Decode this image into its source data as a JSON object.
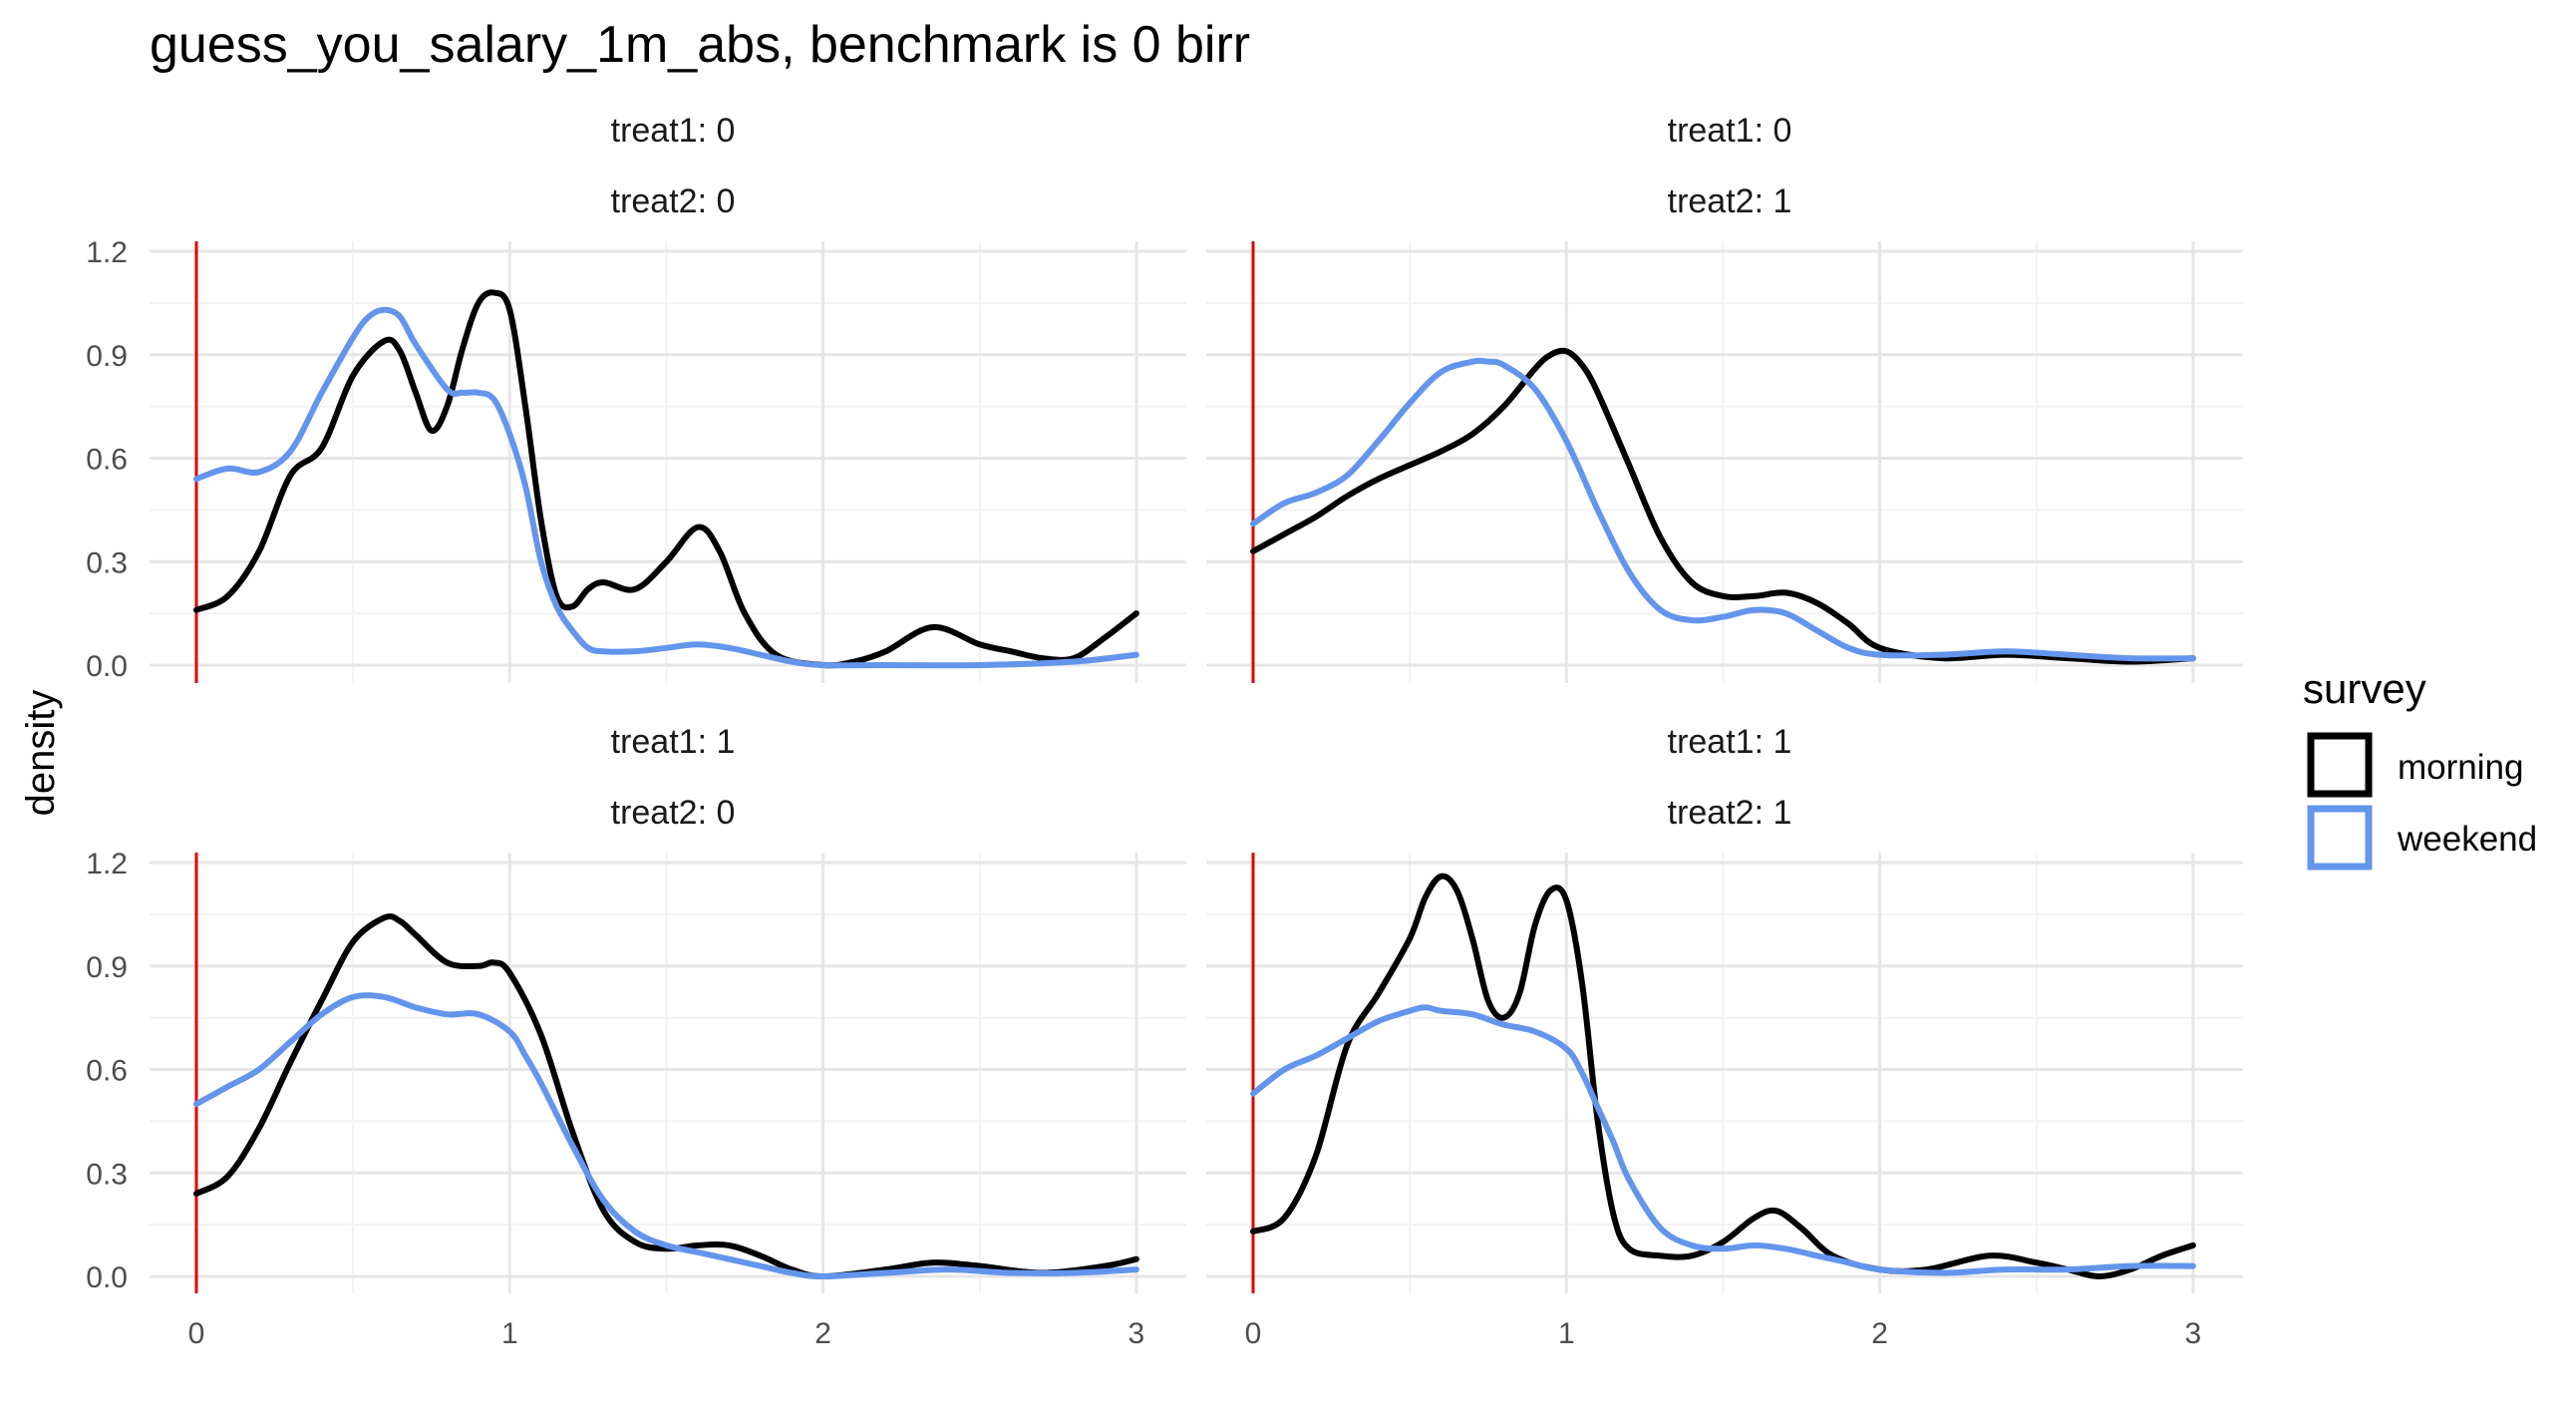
{
  "chart_data": {
    "type": "line",
    "title": "guess_you_salary_1m_abs, benchmark is 0 birr",
    "xlabel": "",
    "ylabel": "density",
    "xlim": [
      0,
      3
    ],
    "ylim": [
      0,
      1.2
    ],
    "x_ticks": [
      0,
      1,
      2,
      3
    ],
    "x_tick_labels": [
      "0",
      "1",
      "2",
      "3"
    ],
    "y_ticks": [
      0,
      0.3,
      0.6,
      0.9,
      1.2
    ],
    "y_tick_labels": [
      "0.0",
      "0.3",
      "0.6",
      "0.9",
      "1.2"
    ],
    "grid": true,
    "reference_line": {
      "x": 0,
      "color": "#e00000"
    },
    "legend": {
      "title": "survey",
      "position": "right",
      "entries": [
        {
          "label": "morning",
          "color": "#000000"
        },
        {
          "label": "weekend",
          "color": "#6495ED"
        }
      ]
    },
    "facets": [
      {
        "strip": [
          "treat1: 0",
          "treat2: 0"
        ],
        "series": [
          {
            "name": "morning",
            "color": "#000000",
            "x": [
              0,
              0.1,
              0.2,
              0.3,
              0.4,
              0.5,
              0.6,
              0.65,
              0.7,
              0.75,
              0.8,
              0.85,
              0.9,
              0.95,
              1.0,
              1.05,
              1.1,
              1.15,
              1.2,
              1.25,
              1.3,
              1.4,
              1.5,
              1.6,
              1.67,
              1.75,
              1.85,
              2.0,
              2.1,
              2.2,
              2.35,
              2.5,
              2.6,
              2.7,
              2.8,
              2.9,
              3.0
            ],
            "y": [
              0.16,
              0.2,
              0.33,
              0.55,
              0.63,
              0.84,
              0.94,
              0.91,
              0.79,
              0.68,
              0.75,
              0.92,
              1.05,
              1.08,
              1.03,
              0.75,
              0.42,
              0.2,
              0.17,
              0.22,
              0.24,
              0.22,
              0.3,
              0.4,
              0.33,
              0.15,
              0.03,
              0.0,
              0.01,
              0.04,
              0.11,
              0.06,
              0.04,
              0.02,
              0.02,
              0.08,
              0.15
            ]
          },
          {
            "name": "weekend",
            "color": "#6495ED",
            "x": [
              0,
              0.1,
              0.2,
              0.3,
              0.4,
              0.5,
              0.55,
              0.6,
              0.65,
              0.7,
              0.8,
              0.85,
              0.9,
              0.95,
              1.0,
              1.05,
              1.1,
              1.15,
              1.2,
              1.25,
              1.3,
              1.4,
              1.5,
              1.6,
              1.7,
              1.8,
              1.9,
              2.0,
              2.2,
              2.5,
              2.8,
              3.0
            ],
            "y": [
              0.54,
              0.57,
              0.56,
              0.62,
              0.79,
              0.95,
              1.01,
              1.03,
              1.01,
              0.93,
              0.8,
              0.79,
              0.79,
              0.77,
              0.67,
              0.52,
              0.3,
              0.17,
              0.1,
              0.05,
              0.04,
              0.04,
              0.05,
              0.06,
              0.05,
              0.03,
              0.01,
              0.0,
              0.0,
              0.0,
              0.01,
              0.03
            ]
          }
        ]
      },
      {
        "strip": [
          "treat1: 0",
          "treat2: 1"
        ],
        "series": [
          {
            "name": "morning",
            "color": "#000000",
            "x": [
              0,
              0.1,
              0.2,
              0.3,
              0.4,
              0.5,
              0.6,
              0.7,
              0.8,
              0.9,
              0.95,
              1.0,
              1.05,
              1.1,
              1.2,
              1.3,
              1.4,
              1.5,
              1.6,
              1.7,
              1.8,
              1.9,
              2.0,
              2.2,
              2.4,
              2.6,
              2.8,
              3.0
            ],
            "y": [
              0.33,
              0.38,
              0.43,
              0.49,
              0.54,
              0.58,
              0.62,
              0.67,
              0.75,
              0.86,
              0.9,
              0.91,
              0.87,
              0.79,
              0.58,
              0.37,
              0.24,
              0.2,
              0.2,
              0.21,
              0.18,
              0.12,
              0.05,
              0.02,
              0.03,
              0.02,
              0.01,
              0.02
            ]
          },
          {
            "name": "weekend",
            "color": "#6495ED",
            "x": [
              0,
              0.1,
              0.2,
              0.3,
              0.4,
              0.5,
              0.6,
              0.7,
              0.75,
              0.8,
              0.9,
              1.0,
              1.1,
              1.2,
              1.3,
              1.4,
              1.5,
              1.6,
              1.7,
              1.8,
              1.9,
              2.0,
              2.2,
              2.4,
              2.6,
              2.8,
              3.0
            ],
            "y": [
              0.41,
              0.47,
              0.5,
              0.55,
              0.65,
              0.76,
              0.85,
              0.88,
              0.88,
              0.87,
              0.8,
              0.65,
              0.45,
              0.27,
              0.16,
              0.13,
              0.14,
              0.16,
              0.15,
              0.1,
              0.05,
              0.03,
              0.03,
              0.04,
              0.03,
              0.02,
              0.02
            ]
          }
        ]
      },
      {
        "strip": [
          "treat1: 1",
          "treat2: 0"
        ],
        "series": [
          {
            "name": "morning",
            "color": "#000000",
            "x": [
              0,
              0.1,
              0.2,
              0.3,
              0.4,
              0.5,
              0.6,
              0.65,
              0.7,
              0.8,
              0.9,
              0.95,
              1.0,
              1.1,
              1.2,
              1.3,
              1.4,
              1.5,
              1.6,
              1.7,
              1.8,
              1.9,
              2.0,
              2.2,
              2.35,
              2.5,
              2.7,
              2.9,
              3.0
            ],
            "y": [
              0.24,
              0.29,
              0.43,
              0.62,
              0.8,
              0.97,
              1.04,
              1.03,
              0.99,
              0.91,
              0.9,
              0.91,
              0.88,
              0.7,
              0.42,
              0.19,
              0.1,
              0.08,
              0.09,
              0.09,
              0.06,
              0.02,
              0.0,
              0.02,
              0.04,
              0.03,
              0.01,
              0.03,
              0.05
            ]
          },
          {
            "name": "weekend",
            "color": "#6495ED",
            "x": [
              0,
              0.1,
              0.2,
              0.3,
              0.4,
              0.5,
              0.6,
              0.7,
              0.8,
              0.9,
              1.0,
              1.05,
              1.1,
              1.2,
              1.3,
              1.4,
              1.5,
              1.6,
              1.7,
              1.8,
              1.9,
              2.0,
              2.2,
              2.4,
              2.6,
              2.8,
              3.0
            ],
            "y": [
              0.5,
              0.55,
              0.6,
              0.68,
              0.76,
              0.81,
              0.81,
              0.78,
              0.76,
              0.76,
              0.71,
              0.64,
              0.56,
              0.38,
              0.22,
              0.13,
              0.09,
              0.07,
              0.05,
              0.03,
              0.01,
              0.0,
              0.01,
              0.02,
              0.01,
              0.01,
              0.02
            ]
          }
        ]
      },
      {
        "strip": [
          "treat1: 1",
          "treat2: 1"
        ],
        "series": [
          {
            "name": "morning",
            "color": "#000000",
            "x": [
              0,
              0.1,
              0.2,
              0.3,
              0.4,
              0.5,
              0.55,
              0.6,
              0.65,
              0.7,
              0.75,
              0.8,
              0.85,
              0.9,
              0.95,
              1.0,
              1.05,
              1.1,
              1.15,
              1.2,
              1.3,
              1.4,
              1.5,
              1.6,
              1.67,
              1.75,
              1.85,
              2.0,
              2.15,
              2.35,
              2.5,
              2.6,
              2.7,
              2.8,
              2.9,
              3.0
            ],
            "y": [
              0.13,
              0.17,
              0.35,
              0.67,
              0.82,
              0.98,
              1.1,
              1.16,
              1.12,
              0.98,
              0.8,
              0.75,
              0.82,
              1.02,
              1.12,
              1.09,
              0.85,
              0.45,
              0.18,
              0.08,
              0.06,
              0.06,
              0.1,
              0.17,
              0.19,
              0.14,
              0.06,
              0.02,
              0.02,
              0.06,
              0.04,
              0.02,
              0.0,
              0.02,
              0.06,
              0.09
            ]
          },
          {
            "name": "weekend",
            "color": "#6495ED",
            "x": [
              0,
              0.1,
              0.2,
              0.3,
              0.4,
              0.5,
              0.55,
              0.6,
              0.7,
              0.8,
              0.9,
              1.0,
              1.05,
              1.1,
              1.15,
              1.2,
              1.3,
              1.4,
              1.5,
              1.6,
              1.7,
              1.8,
              1.9,
              2.0,
              2.2,
              2.4,
              2.6,
              2.8,
              3.0
            ],
            "y": [
              0.53,
              0.6,
              0.64,
              0.69,
              0.74,
              0.77,
              0.78,
              0.77,
              0.76,
              0.73,
              0.71,
              0.66,
              0.59,
              0.49,
              0.39,
              0.28,
              0.14,
              0.09,
              0.08,
              0.09,
              0.08,
              0.06,
              0.04,
              0.02,
              0.01,
              0.02,
              0.02,
              0.03,
              0.03
            ]
          }
        ]
      }
    ]
  }
}
